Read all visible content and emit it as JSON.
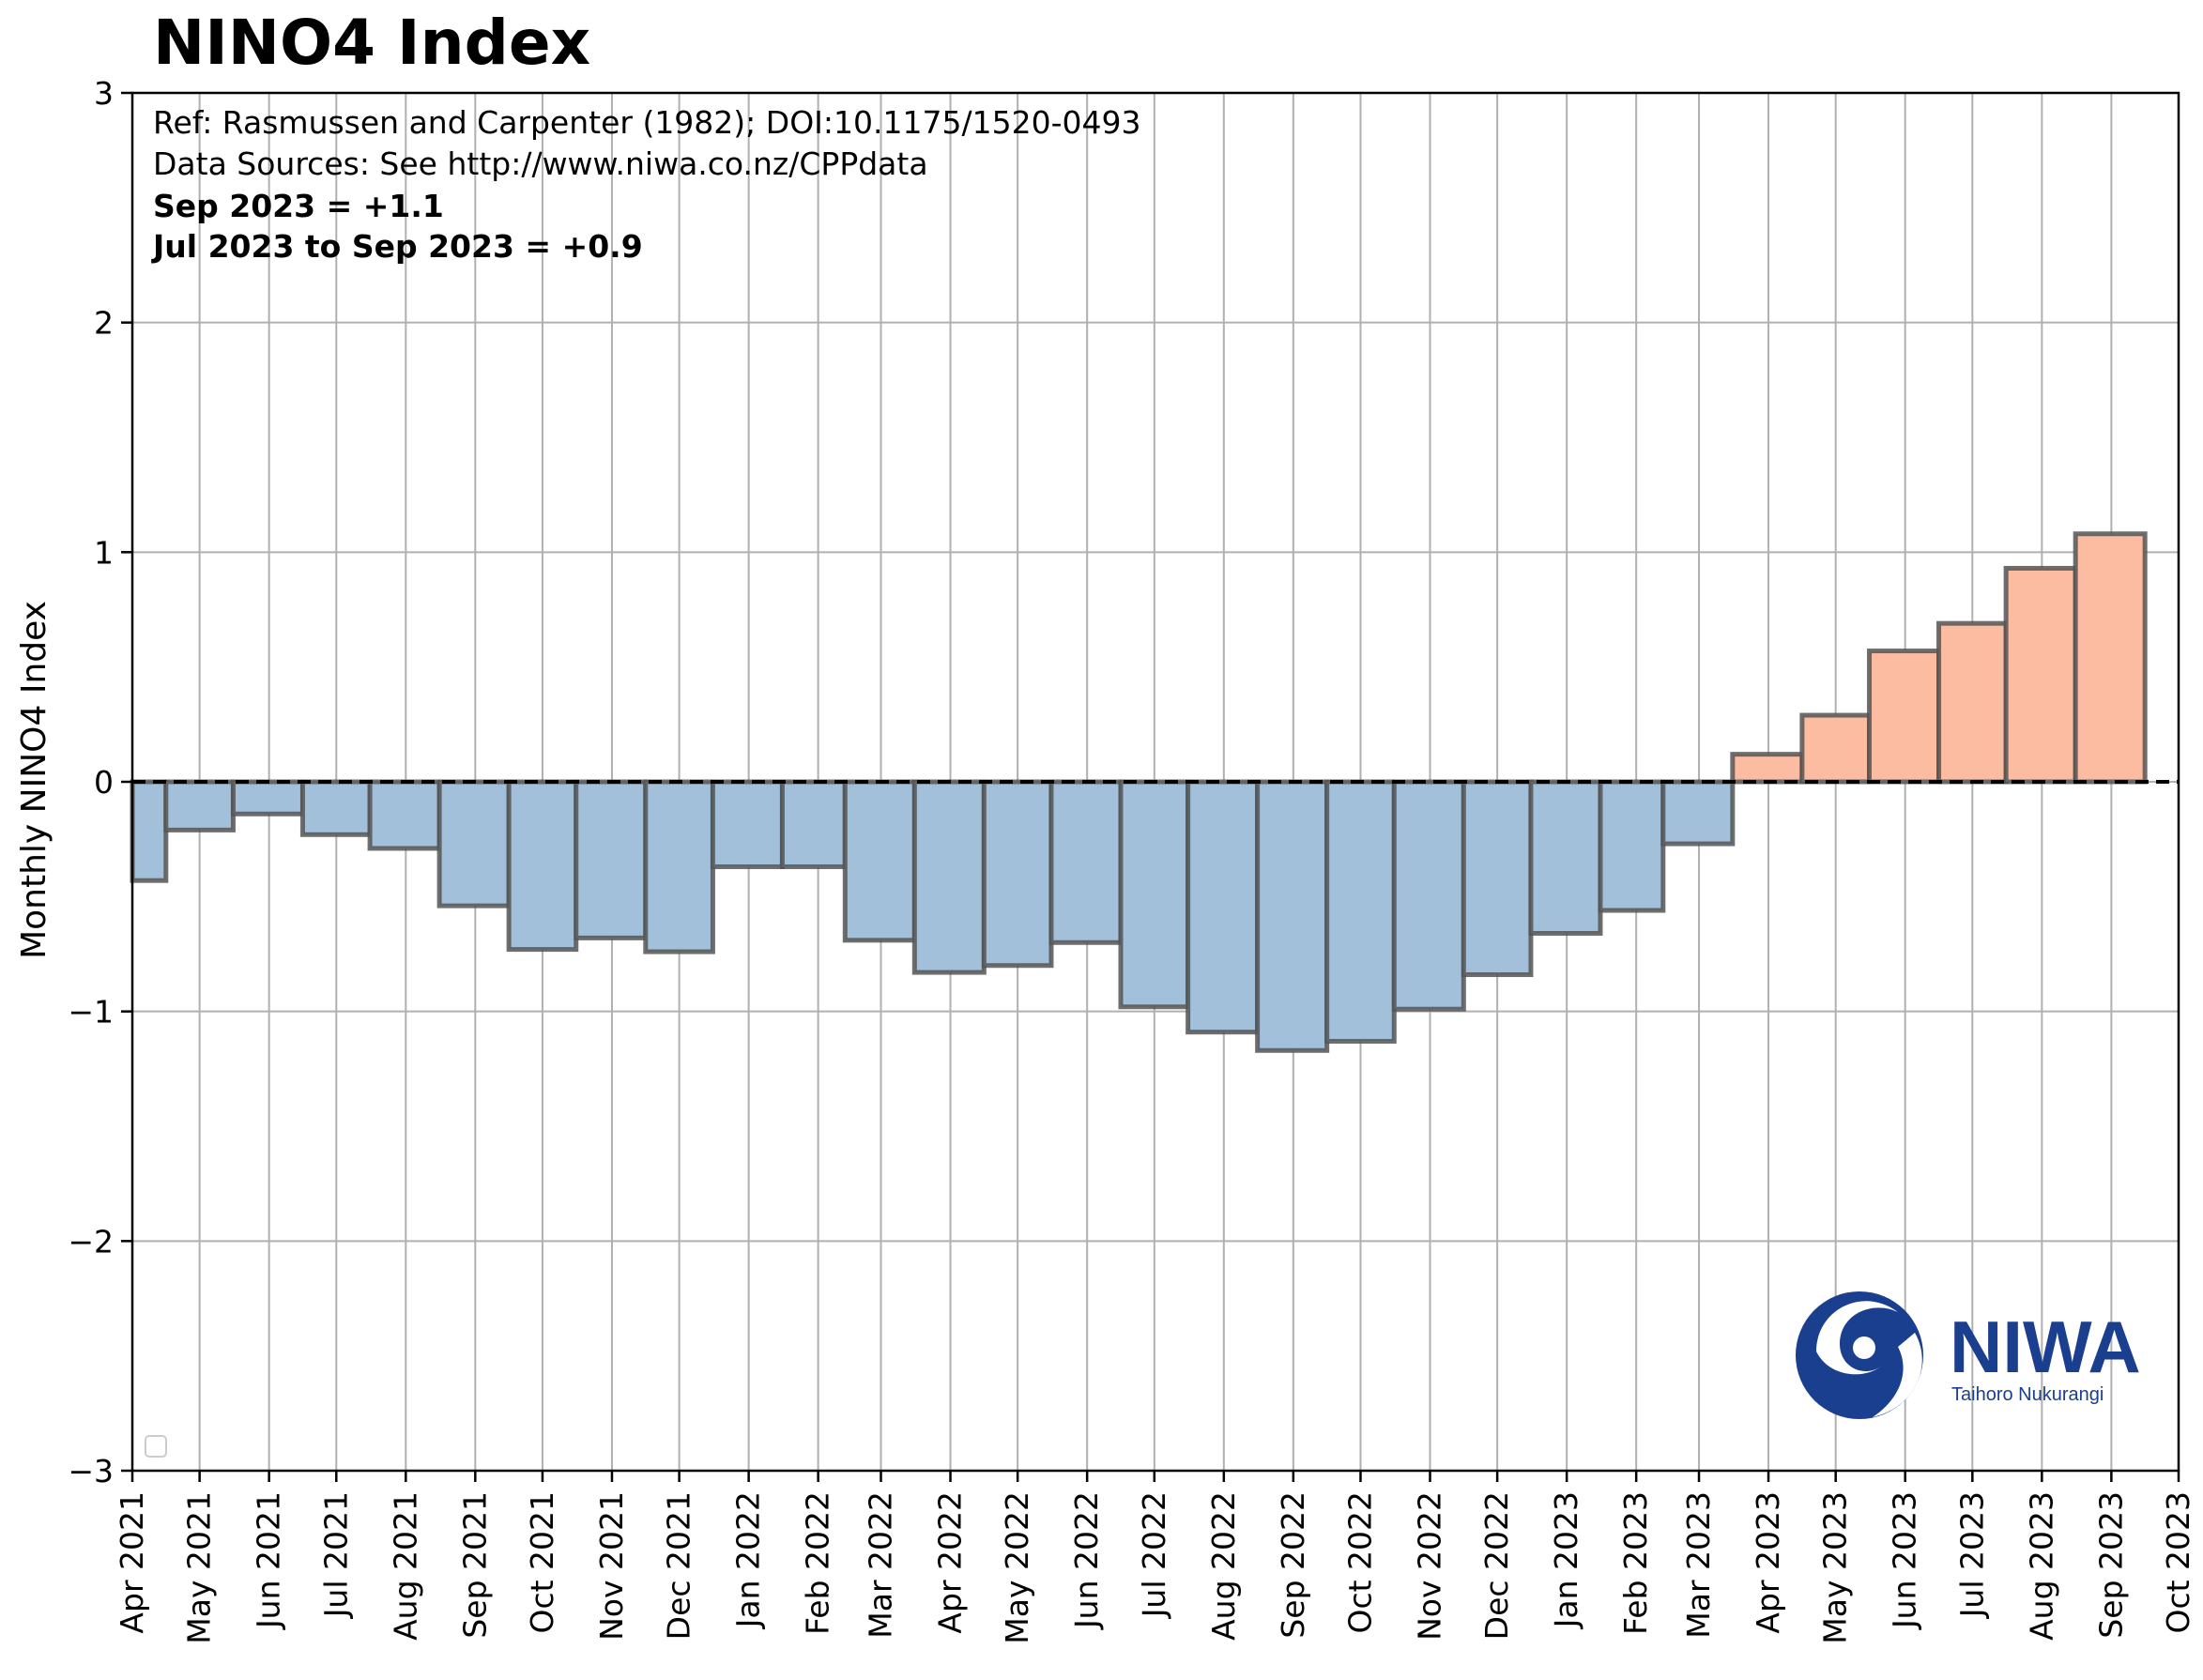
{
  "chart_data": {
    "type": "bar",
    "title": "NINO4 Index",
    "ylabel": "Monthly NINO4 Index",
    "xlabel": "",
    "ylim": [
      -3,
      3
    ],
    "yticks": [
      "−3",
      "−2",
      "−1",
      "0",
      "1",
      "2",
      "3"
    ],
    "ytick_values": [
      -3,
      -2,
      -1,
      0,
      1,
      2,
      3
    ],
    "xtick_labels": [
      "Apr 2021",
      "May 2021",
      "Jun 2021",
      "Jul 2021",
      "Aug 2021",
      "Sep 2021",
      "Oct 2021",
      "Nov 2021",
      "Dec 2021",
      "Jan 2022",
      "Feb 2022",
      "Mar 2022",
      "Apr 2022",
      "May 2022",
      "Jun 2022",
      "Jul 2022",
      "Aug 2022",
      "Sep 2022",
      "Oct 2022",
      "Nov 2022",
      "Dec 2022",
      "Jan 2023",
      "Feb 2023",
      "Mar 2023",
      "Apr 2023",
      "May 2023",
      "Jun 2023",
      "Jul 2023",
      "Aug 2023",
      "Sep 2023",
      "Oct 2023"
    ],
    "x_start": "2021-04-01",
    "x_end": "2023-10-01",
    "bars": [
      {
        "start": "2021-03-16",
        "end": "2021-04-16",
        "value": -0.43
      },
      {
        "start": "2021-04-16",
        "end": "2021-05-16",
        "value": -0.21
      },
      {
        "start": "2021-05-16",
        "end": "2021-06-16",
        "value": -0.14
      },
      {
        "start": "2021-06-16",
        "end": "2021-07-16",
        "value": -0.23
      },
      {
        "start": "2021-07-16",
        "end": "2021-08-16",
        "value": -0.29
      },
      {
        "start": "2021-08-16",
        "end": "2021-09-16",
        "value": -0.54
      },
      {
        "start": "2021-09-16",
        "end": "2021-10-16",
        "value": -0.73
      },
      {
        "start": "2021-10-16",
        "end": "2021-11-16",
        "value": -0.68
      },
      {
        "start": "2021-11-16",
        "end": "2021-12-16",
        "value": -0.74
      },
      {
        "start": "2021-12-16",
        "end": "2022-01-16",
        "value": -0.37
      },
      {
        "start": "2022-01-16",
        "end": "2022-02-13",
        "value": -0.37
      },
      {
        "start": "2022-02-13",
        "end": "2022-03-16",
        "value": -0.69
      },
      {
        "start": "2022-03-16",
        "end": "2022-04-16",
        "value": -0.83
      },
      {
        "start": "2022-04-16",
        "end": "2022-05-16",
        "value": -0.8
      },
      {
        "start": "2022-05-16",
        "end": "2022-06-16",
        "value": -0.7
      },
      {
        "start": "2022-06-16",
        "end": "2022-07-16",
        "value": -0.98
      },
      {
        "start": "2022-07-16",
        "end": "2022-08-16",
        "value": -1.09
      },
      {
        "start": "2022-08-16",
        "end": "2022-09-16",
        "value": -1.17
      },
      {
        "start": "2022-09-16",
        "end": "2022-10-16",
        "value": -1.13
      },
      {
        "start": "2022-10-16",
        "end": "2022-11-16",
        "value": -0.99
      },
      {
        "start": "2022-11-16",
        "end": "2022-12-16",
        "value": -0.84
      },
      {
        "start": "2022-12-16",
        "end": "2023-01-16",
        "value": -0.66
      },
      {
        "start": "2023-01-16",
        "end": "2023-02-13",
        "value": -0.56
      },
      {
        "start": "2023-02-13",
        "end": "2023-03-16",
        "value": -0.27
      },
      {
        "start": "2023-03-16",
        "end": "2023-04-16",
        "value": 0.12
      },
      {
        "start": "2023-04-16",
        "end": "2023-05-16",
        "value": 0.29
      },
      {
        "start": "2023-05-16",
        "end": "2023-06-16",
        "value": 0.57
      },
      {
        "start": "2023-06-16",
        "end": "2023-07-16",
        "value": 0.69
      },
      {
        "start": "2023-07-16",
        "end": "2023-08-16",
        "value": 0.93
      },
      {
        "start": "2023-08-16",
        "end": "2023-09-16",
        "value": 1.08
      }
    ],
    "negative_color": "#a3c0da",
    "positive_color": "#fcbca2",
    "edge_color": "#555555",
    "zero_line": "dashed",
    "grid": true,
    "legend": "lower-left (empty)"
  },
  "annotations": {
    "ref": "Ref: Rasmussen and Carpenter (1982); DOI:10.1175/1520-0493",
    "sources": "Data Sources: See http://www.niwa.co.nz/CPPdata",
    "latest": "Sep 2023 = +1.1",
    "season": "Jul 2023 to Sep 2023 = +0.9"
  },
  "logo": {
    "name": "NIWA",
    "tagline": "Taihoro Nukurangi",
    "color": "#1b3f8f"
  }
}
